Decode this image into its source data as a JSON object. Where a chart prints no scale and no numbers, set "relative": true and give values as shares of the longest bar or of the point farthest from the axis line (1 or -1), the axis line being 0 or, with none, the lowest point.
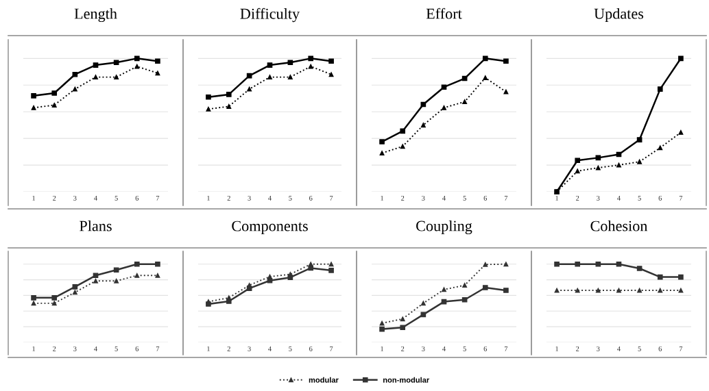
{
  "chart_data": [
    {
      "type": "line",
      "title": "Length",
      "relative": true,
      "grid": "y",
      "categories": [
        "1",
        "2",
        "3",
        "4",
        "5",
        "6",
        "7"
      ],
      "series": [
        {
          "color": "#000000",
          "marker": "triangle",
          "line_style": "dotted",
          "values": [
            0.63,
            0.65,
            0.77,
            0.86,
            0.86,
            0.94,
            0.89
          ]
        },
        {
          "color": "#000000",
          "marker": "square",
          "line_style": "solid",
          "values": [
            0.72,
            0.74,
            0.88,
            0.95,
            0.97,
            1.0,
            0.98
          ]
        }
      ]
    },
    {
      "type": "line",
      "title": "Difficulty",
      "relative": true,
      "grid": "y",
      "categories": [
        "1",
        "2",
        "3",
        "4",
        "5",
        "6",
        "7"
      ],
      "series": [
        {
          "color": "#000000",
          "marker": "triangle",
          "line_style": "dotted",
          "values": [
            0.62,
            0.64,
            0.77,
            0.86,
            0.86,
            0.94,
            0.88
          ]
        },
        {
          "color": "#000000",
          "marker": "square",
          "line_style": "solid",
          "values": [
            0.71,
            0.73,
            0.87,
            0.95,
            0.97,
            1.0,
            0.98
          ]
        }
      ]
    },
    {
      "type": "line",
      "title": "Effort",
      "relative": true,
      "grid": "y",
      "categories": [
        "1",
        "2",
        "3",
        "4",
        "5",
        "6",
        "7"
      ],
      "series": [
        {
          "color": "#000000",
          "marker": "triangle",
          "line_style": "dotted",
          "values": [
            0.29,
            0.34,
            0.5,
            0.63,
            0.675,
            0.855,
            0.75
          ]
        },
        {
          "color": "#000000",
          "marker": "square",
          "line_style": "solid",
          "values": [
            0.375,
            0.455,
            0.655,
            0.785,
            0.85,
            1.0,
            0.98
          ]
        }
      ]
    },
    {
      "type": "line",
      "title": "Updates",
      "relative": true,
      "grid": "y",
      "categories": [
        "1",
        "2",
        "3",
        "4",
        "5",
        "6",
        "7"
      ],
      "series": [
        {
          "color": "#000000",
          "marker": "triangle",
          "line_style": "dotted",
          "values": [
            0,
            0.155,
            0.18,
            0.2,
            0.225,
            0.33,
            0.445
          ]
        },
        {
          "color": "#000000",
          "marker": "square",
          "line_style": "solid",
          "values": [
            0,
            0.235,
            0.255,
            0.28,
            0.39,
            0.77,
            1.0
          ]
        }
      ]
    },
    {
      "type": "line",
      "title": "Plans",
      "relative": true,
      "grid": "y",
      "categories": [
        "1",
        "2",
        "3",
        "4",
        "5",
        "6",
        "7"
      ],
      "series": [
        {
          "color": "#333333",
          "marker": "triangle",
          "line_style": "dotted",
          "values": [
            0.5,
            0.5,
            0.64,
            0.785,
            0.785,
            0.855,
            0.855
          ]
        },
        {
          "color": "#333333",
          "marker": "square",
          "line_style": "solid",
          "values": [
            0.57,
            0.57,
            0.71,
            0.855,
            0.925,
            1.0,
            1.0
          ]
        }
      ]
    },
    {
      "type": "line",
      "title": "Components",
      "relative": true,
      "grid": "y",
      "categories": [
        "1",
        "2",
        "3",
        "4",
        "5",
        "6",
        "7"
      ],
      "series": [
        {
          "color": "#333333",
          "marker": "triangle",
          "line_style": "dotted",
          "values": [
            0.52,
            0.57,
            0.73,
            0.84,
            0.87,
            1.0,
            1.0
          ]
        },
        {
          "color": "#333333",
          "marker": "square",
          "line_style": "solid",
          "values": [
            0.49,
            0.525,
            0.69,
            0.79,
            0.83,
            0.95,
            0.92
          ]
        }
      ]
    },
    {
      "type": "line",
      "title": "Coupling",
      "relative": true,
      "grid": "y",
      "categories": [
        "1",
        "2",
        "3",
        "4",
        "5",
        "6",
        "7"
      ],
      "series": [
        {
          "color": "#333333",
          "marker": "triangle",
          "line_style": "dotted",
          "values": [
            0.245,
            0.3,
            0.5,
            0.675,
            0.73,
            0.995,
            1.0
          ]
        },
        {
          "color": "#333333",
          "marker": "square",
          "line_style": "solid",
          "values": [
            0.17,
            0.19,
            0.355,
            0.52,
            0.545,
            0.7,
            0.665
          ]
        }
      ]
    },
    {
      "type": "line",
      "title": "Cohesion",
      "relative": true,
      "grid": "y",
      "legend": "bottom",
      "categories": [
        "1",
        "2",
        "3",
        "4",
        "5",
        "6",
        "7"
      ],
      "series": [
        {
          "name": "modular",
          "color": "#333333",
          "marker": "triangle",
          "line_style": "dotted",
          "values": [
            0.665,
            0.665,
            0.665,
            0.665,
            0.665,
            0.665,
            0.665
          ]
        },
        {
          "name": "non-modular",
          "color": "#333333",
          "marker": "square",
          "line_style": "solid",
          "values": [
            1.0,
            1.0,
            1.0,
            1.0,
            0.945,
            0.835,
            0.835
          ]
        }
      ]
    }
  ]
}
